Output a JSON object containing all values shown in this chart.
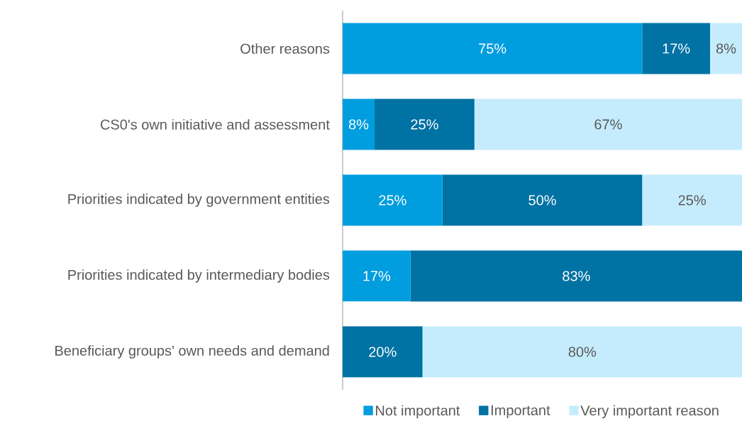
{
  "chart_data": {
    "type": "bar",
    "orientation": "horizontal",
    "stacked": true,
    "categories": [
      "Other reasons",
      "CS0's own initiative and assessment",
      "Priorities indicated by government entities",
      "Priorities indicated by intermediary bodies",
      "Beneficiary groups' own needs and demand"
    ],
    "series": [
      {
        "name": "Not important",
        "color": "#009ddf",
        "values": [
          75,
          8,
          25,
          17,
          0
        ],
        "value_labels": [
          "75%",
          "8%",
          "25%",
          "17%",
          null
        ]
      },
      {
        "name": "Important",
        "color": "#0072a3",
        "values": [
          17,
          25,
          50,
          83,
          20
        ],
        "value_labels": [
          "17%",
          "25%",
          "50%",
          "83%",
          "20%"
        ]
      },
      {
        "name": "Very important reason",
        "color": "#c5ecfc",
        "values": [
          8,
          67,
          25,
          0,
          80
        ],
        "value_labels": [
          "8%",
          "67%",
          "25%",
          null,
          "80%"
        ]
      }
    ],
    "xlim": [
      0,
      100
    ],
    "tick_labels": "y",
    "grid": false,
    "legend": "bottom"
  }
}
